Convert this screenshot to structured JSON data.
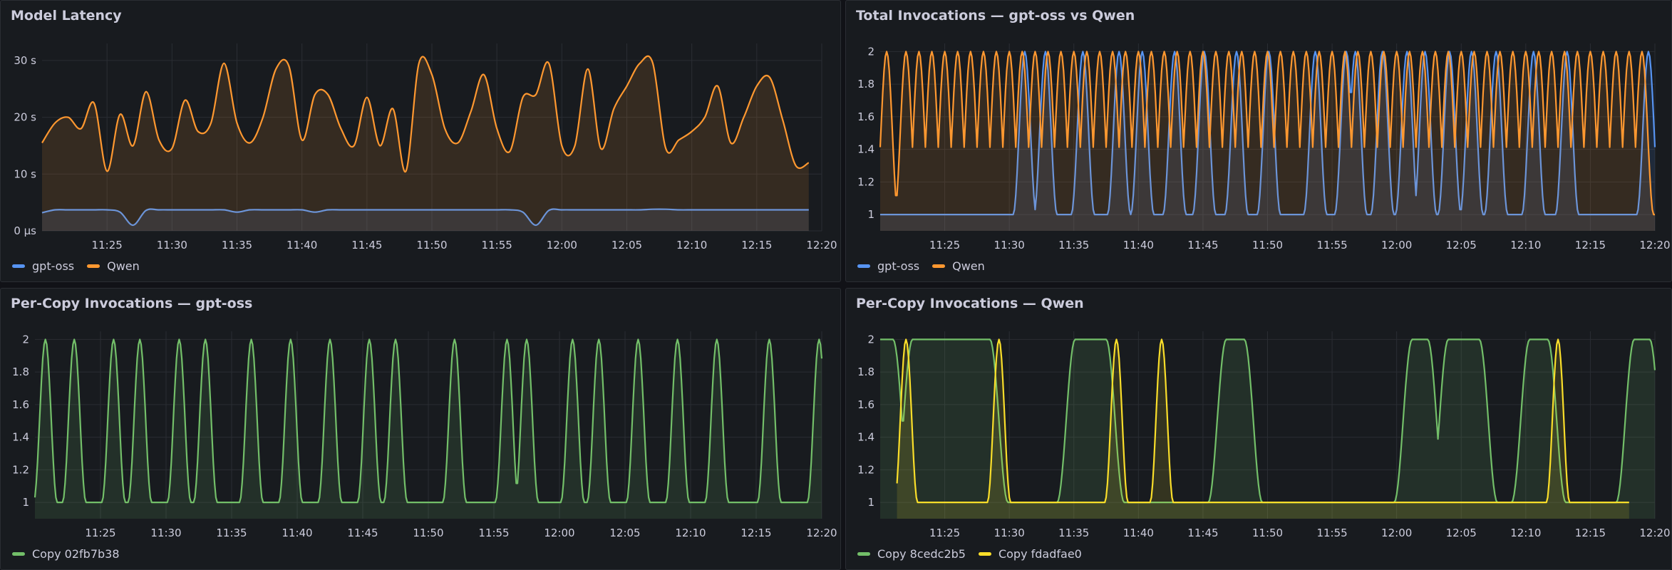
{
  "panels": [
    {
      "title": "Model Latency",
      "legend": [
        {
          "name": "gpt-oss",
          "color": "#5794f2"
        },
        {
          "name": "Qwen",
          "color": "#ff9830"
        }
      ]
    },
    {
      "title": "Total Invocations — gpt-oss vs Qwen",
      "legend": [
        {
          "name": "gpt-oss",
          "color": "#5794f2"
        },
        {
          "name": "Qwen",
          "color": "#ff9830"
        }
      ]
    },
    {
      "title": "Per-Copy Invocations — gpt-oss",
      "legend": [
        {
          "name": "Copy 02fb7b38",
          "color": "#73bf69"
        }
      ]
    },
    {
      "title": "Per-Copy Invocations — Qwen",
      "legend": [
        {
          "name": "Copy 8cedc2b5",
          "color": "#73bf69"
        },
        {
          "name": "Copy fdadfae0",
          "color": "#fade2a"
        }
      ]
    }
  ],
  "chart_data": [
    {
      "type": "area",
      "title": "Model Latency",
      "x_ticks": [
        "11:25",
        "11:30",
        "11:35",
        "11:40",
        "11:45",
        "11:50",
        "11:55",
        "12:00",
        "12:05",
        "12:10",
        "12:15",
        "12:20"
      ],
      "y_ticks": [
        "0 µs",
        "10 s",
        "20 s",
        "30 s"
      ],
      "xlim": [
        "11:20",
        "12:20"
      ],
      "ylim": [
        0,
        33
      ],
      "grid": true,
      "legend_placement": "bottom-left",
      "series": [
        {
          "name": "gpt-oss",
          "color": "#5794f2",
          "x": [
            0,
            1,
            2,
            3,
            4,
            5,
            6,
            7,
            8,
            9,
            10,
            11,
            12,
            13,
            14,
            15,
            16,
            17,
            18,
            19,
            20,
            21,
            22,
            23,
            24,
            25,
            26,
            27,
            28,
            29,
            30,
            31,
            32,
            33,
            34,
            35,
            36,
            37,
            38,
            39,
            40,
            41,
            42,
            43,
            44,
            45,
            46,
            47,
            48,
            49,
            50,
            51,
            52,
            53,
            54,
            55,
            56,
            57,
            58,
            59
          ],
          "y": [
            3.2,
            3.7,
            3.7,
            3.7,
            3.7,
            3.7,
            3.3,
            1.0,
            3.6,
            3.7,
            3.7,
            3.7,
            3.7,
            3.7,
            3.7,
            3.3,
            3.7,
            3.7,
            3.7,
            3.7,
            3.7,
            3.3,
            3.7,
            3.7,
            3.7,
            3.7,
            3.7,
            3.7,
            3.7,
            3.7,
            3.7,
            3.7,
            3.7,
            3.7,
            3.7,
            3.7,
            3.7,
            3.3,
            1.0,
            3.6,
            3.7,
            3.7,
            3.7,
            3.7,
            3.7,
            3.7,
            3.7,
            3.8,
            3.8,
            3.7,
            3.7,
            3.7,
            3.7,
            3.7,
            3.7,
            3.7,
            3.7,
            3.7,
            3.7,
            3.7
          ]
        },
        {
          "name": "Qwen",
          "color": "#ff9830",
          "x": [
            0,
            1,
            2,
            3,
            4,
            5,
            6,
            7,
            8,
            9,
            10,
            11,
            12,
            13,
            14,
            15,
            16,
            17,
            18,
            19,
            20,
            21,
            22,
            23,
            24,
            25,
            26,
            27,
            28,
            29,
            30,
            31,
            32,
            33,
            34,
            35,
            36,
            37,
            38,
            39,
            40,
            41,
            42,
            43,
            44,
            45,
            46,
            47,
            48,
            49,
            50,
            51,
            52,
            53,
            54,
            55,
            56,
            57,
            58,
            59
          ],
          "y": [
            15.5,
            19,
            20,
            18,
            22.5,
            10.5,
            20.5,
            15,
            24.5,
            16,
            14.5,
            23,
            17.5,
            19,
            29.5,
            19,
            15.5,
            20,
            28.5,
            29,
            16,
            24,
            24,
            18,
            15,
            23.5,
            15,
            21.5,
            10.5,
            29.5,
            27.5,
            18,
            15.5,
            21,
            27.5,
            18,
            14,
            23.5,
            24,
            29.5,
            15,
            15,
            28.5,
            14.5,
            21.5,
            25.5,
            29.5,
            29.5,
            14.5,
            16,
            17.5,
            20,
            25.5,
            15.5,
            20,
            25.5,
            27,
            19.5,
            11.5,
            12
          ]
        }
      ]
    },
    {
      "type": "area",
      "title": "Total Invocations — gpt-oss vs Qwen",
      "x_ticks": [
        "11:25",
        "11:30",
        "11:35",
        "11:40",
        "11:45",
        "11:50",
        "11:55",
        "12:00",
        "12:05",
        "12:10",
        "12:15",
        "12:20"
      ],
      "y_ticks": [
        "1",
        "1.2",
        "1.4",
        "1.6",
        "1.8",
        "2"
      ],
      "xlim": [
        "11:20",
        "12:20"
      ],
      "ylim": [
        0.9,
        2.05
      ],
      "grid": true,
      "legend_placement": "bottom-left",
      "series": [
        {
          "name": "gpt-oss",
          "color": "#5794f2",
          "peaks": [
            11.2,
            12.8,
            15.7,
            18.5,
            20.3,
            22.8,
            25.1,
            27.6,
            30.1,
            33.7,
            36.1,
            36.8,
            38.9,
            40.8,
            42.2,
            44.1,
            45.8,
            47.7,
            50.6,
            53.2,
            59.5
          ]
        },
        {
          "name": "Qwen",
          "color": "#ff9830",
          "peaks": [
            0.5,
            2.0,
            3.0,
            4.0,
            5.0,
            6.0,
            7.0,
            8.0,
            9.0,
            10.0,
            11.0,
            12.0,
            13.0,
            14.0,
            15.0,
            16.0,
            17.0,
            18.0,
            19.0,
            20.0,
            21.0,
            22.0,
            23.0,
            24.0,
            25.0,
            26.0,
            27.0,
            28.0,
            29.0,
            30.0,
            31.0,
            32.0,
            33.0,
            34.0,
            35.0,
            36.0,
            37.0,
            38.0,
            39.0,
            40.0,
            41.0,
            42.0,
            43.0,
            44.0,
            45.0,
            46.0,
            47.0,
            48.0,
            49.0,
            50.0,
            51.0,
            52.0,
            53.0,
            54.0,
            55.0,
            56.0,
            57.0,
            58.0,
            59.0
          ]
        }
      ]
    },
    {
      "type": "area",
      "title": "Per-Copy Invocations — gpt-oss",
      "x_ticks": [
        "11:25",
        "11:30",
        "11:35",
        "11:40",
        "11:45",
        "11:50",
        "11:55",
        "12:00",
        "12:05",
        "12:10",
        "12:15",
        "12:20"
      ],
      "y_ticks": [
        "1",
        "1.2",
        "1.4",
        "1.6",
        "1.8",
        "2"
      ],
      "xlim": [
        "11:20",
        "12:20"
      ],
      "ylim": [
        0.9,
        2.05
      ],
      "grid": true,
      "legend_placement": "bottom-left",
      "series": [
        {
          "name": "Copy 02fb7b38",
          "color": "#73bf69",
          "peaks": [
            0.8,
            3.0,
            6.0,
            8.0,
            11.0,
            13.0,
            16.5,
            19.5,
            22.5,
            25.5,
            27.5,
            32.0,
            36.0,
            37.5,
            41.0,
            43.0,
            46.0,
            49.0,
            52.0,
            56.0,
            59.8
          ]
        }
      ]
    },
    {
      "type": "area",
      "title": "Per-Copy Invocations — Qwen",
      "x_ticks": [
        "11:25",
        "11:30",
        "11:35",
        "11:40",
        "11:45",
        "11:50",
        "11:55",
        "12:00",
        "12:05",
        "12:10",
        "12:15",
        "12:20"
      ],
      "y_ticks": [
        "1",
        "1.2",
        "1.4",
        "1.6",
        "1.8",
        "2"
      ],
      "xlim": [
        "11:20",
        "12:20"
      ],
      "ylim": [
        0.9,
        2.05
      ],
      "grid": true,
      "legend_placement": "bottom-left",
      "series": [
        {
          "name": "Copy 8cedc2b5",
          "color": "#73bf69",
          "humps": [
            [
              0.5,
              0.5
            ],
            [
              5.5,
              3.0
            ],
            [
              16.3,
              1.2
            ],
            [
              27.5,
              0.7
            ],
            [
              41.8,
              0.6
            ],
            [
              45.2,
              1.2
            ],
            [
              51.0,
              0.7
            ],
            [
              59.0,
              0.6
            ]
          ]
        },
        {
          "name": "Copy fdadfae0",
          "color": "#fade2a",
          "peaks": [
            2.0,
            9.2,
            18.3,
            21.8,
            52.5
          ],
          "start": 1.3,
          "end": 58.0
        }
      ]
    }
  ]
}
